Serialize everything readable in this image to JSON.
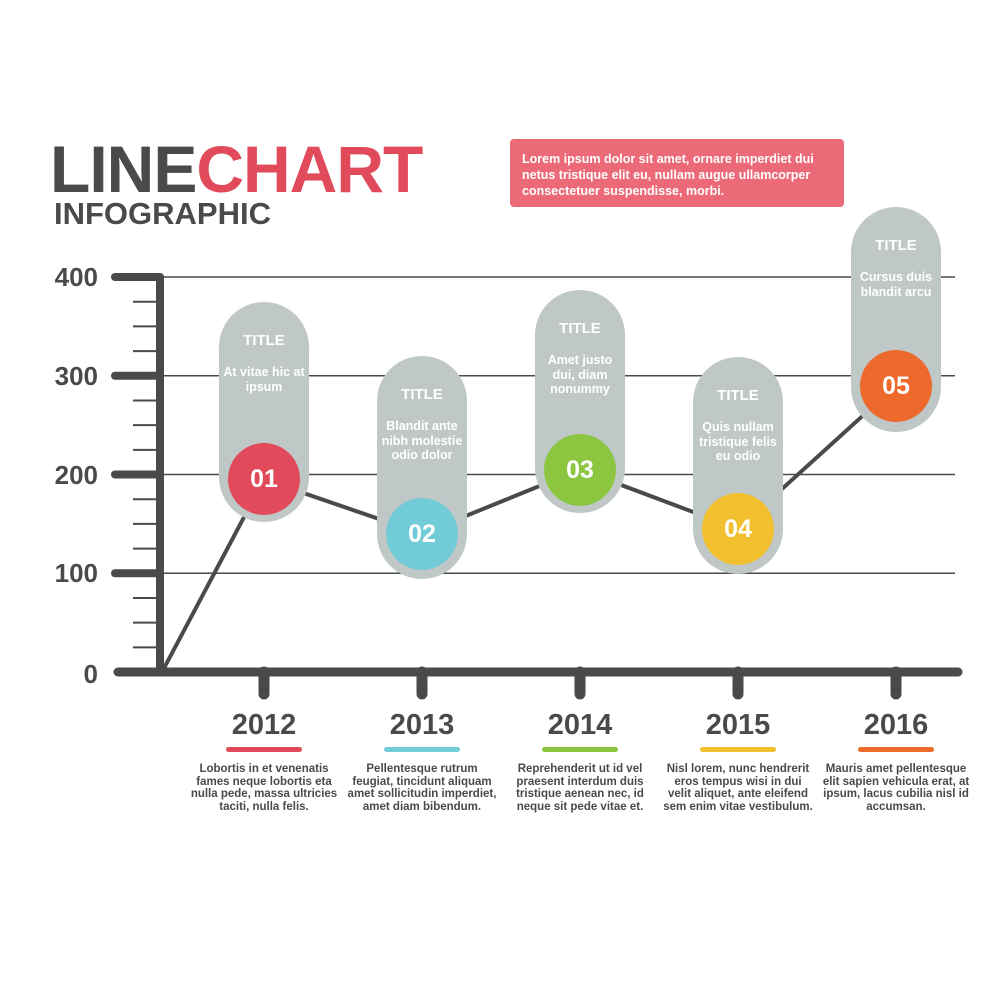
{
  "header": {
    "title_part1": "LINE",
    "title_part2": "CHART",
    "subtitle": "INFOGRAPHIC"
  },
  "note": {
    "text": "Lorem ipsum dolor sit amet, ornare imperdiet dui netus tristique elit eu, nullam augue ullamcorper consectetuer suspendisse, morbi."
  },
  "colors": {
    "dark": "#4a4a4a",
    "title_accent": "#e04a5a",
    "note_bg": "#ec6a77",
    "pill": "#bfc8c6",
    "gridline": "#4a4a4a"
  },
  "chart_data": {
    "type": "line",
    "title": "",
    "xlabel": "",
    "ylabel": "",
    "ylim": [
      0,
      400
    ],
    "y_ticks": [
      0,
      100,
      200,
      300,
      400
    ],
    "y_tick_labels": [
      "0",
      "100",
      "200",
      "300",
      "400"
    ],
    "grid": true,
    "start_value": 0,
    "categories": [
      "2012",
      "2013",
      "2014",
      "2015",
      "2016"
    ],
    "values": [
      195,
      140,
      205,
      145,
      290
    ],
    "points": [
      {
        "year": "2012",
        "marker": "01",
        "color": "#e04a5a",
        "title": "TITLE",
        "text": "At vitae hic at ipsum",
        "description": "Lobortis in et venenatis fames neque lobortis eta nulla pede, massa ultricies taciti, nulla felis."
      },
      {
        "year": "2013",
        "marker": "02",
        "color": "#72ccd8",
        "title": "TITLE",
        "text": "Blandit ante nibh molestie odio dolor",
        "description": "Pellentesque rutrum feugiat, tincidunt aliquam amet sollicitudin imperdiet, amet diam bibendum."
      },
      {
        "year": "2014",
        "marker": "03",
        "color": "#8cc540",
        "title": "TITLE",
        "text": "Amet justo dui, diam nonummy",
        "description": "Reprehenderit ut id vel praesent interdum duis tristique aenean nec, id neque sit pede vitae et."
      },
      {
        "year": "2015",
        "marker": "04",
        "color": "#f2c02e",
        "title": "TITLE",
        "text": "Quis nullam tristique felis eu odio",
        "description": "Nisl lorem, nunc hendrerit eros tempus wisi in dui velit aliquet, ante eleifend sem enim vitae vestibulum."
      },
      {
        "year": "2016",
        "marker": "05",
        "color": "#ed6a2c",
        "title": "TITLE",
        "text": "Cursus duis blandit arcu",
        "description": "Mauris amet pellentesque elit sapien vehicula erat, at ipsum, lacus cubilia nisl id accumsan."
      }
    ]
  }
}
